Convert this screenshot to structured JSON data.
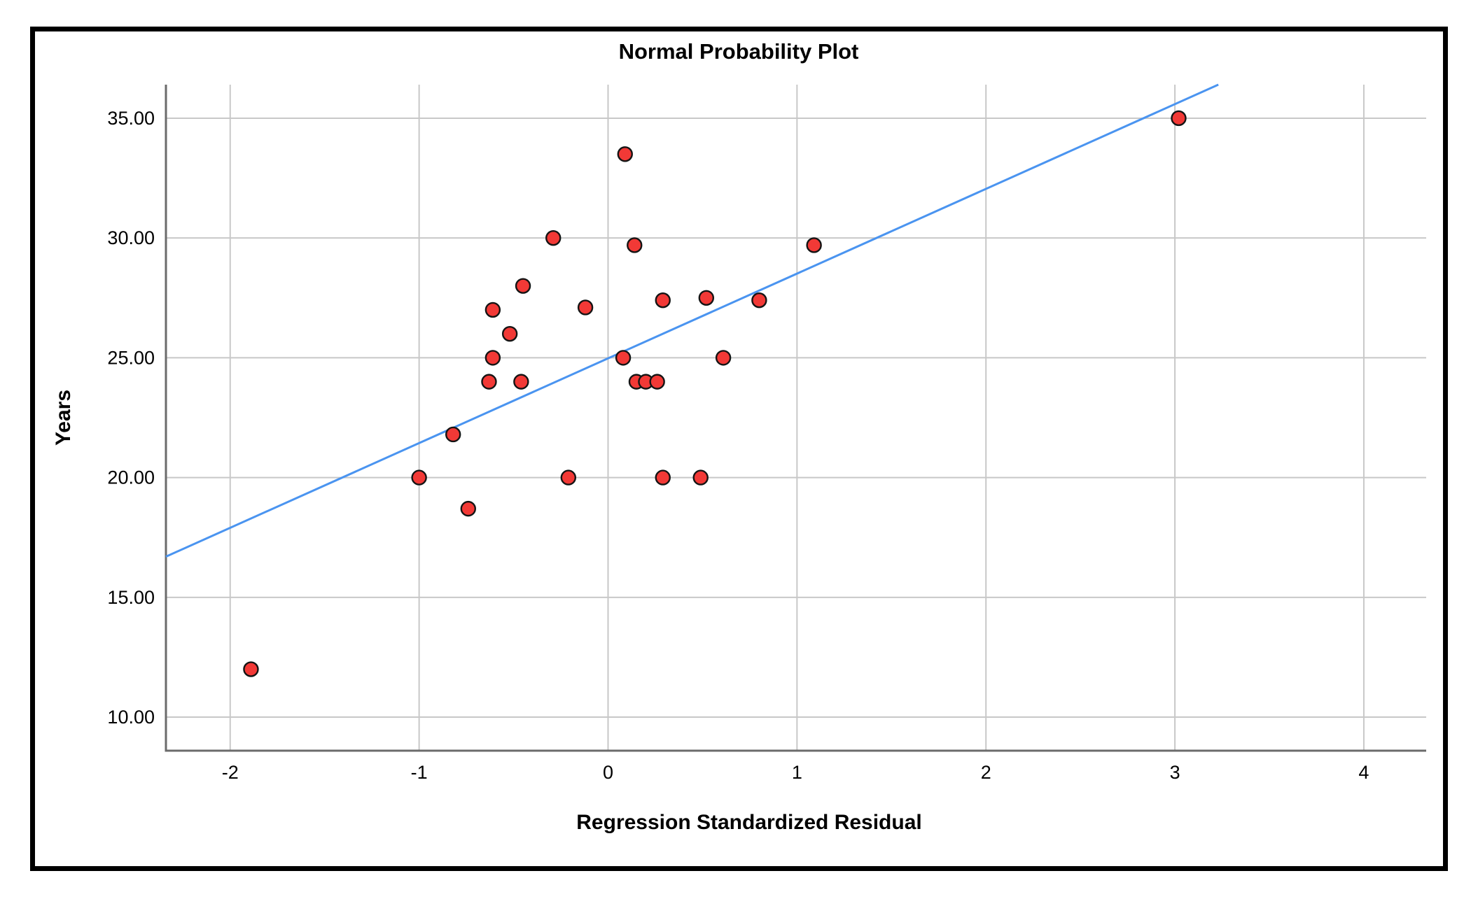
{
  "chart": {
    "title": "Normal Probability Plot",
    "x_axis_label": "Regression Standardized Residual",
    "y_axis_label": "Years"
  },
  "chart_data": {
    "type": "scatter",
    "title": "Normal Probability Plot",
    "xlabel": "Regression Standardized Residual",
    "ylabel": "Years",
    "xlim": [
      -2.34,
      4.33
    ],
    "ylim": [
      8.6,
      36.4
    ],
    "xticks": [
      -2,
      -1,
      0,
      1,
      2,
      3,
      4
    ],
    "xtick_labels": [
      "-2",
      "-1",
      "0",
      "1",
      "2",
      "3",
      "4"
    ],
    "yticks": [
      10,
      15,
      20,
      25,
      30,
      35
    ],
    "ytick_labels": [
      "10.00",
      "15.00",
      "20.00",
      "25.00",
      "30.00",
      "35.00"
    ],
    "grid": true,
    "legend": "none",
    "points": [
      [
        -1.89,
        12.0
      ],
      [
        -1.0,
        20.0
      ],
      [
        -0.82,
        21.8
      ],
      [
        -0.74,
        18.7
      ],
      [
        -0.63,
        24.0
      ],
      [
        -0.61,
        27.0
      ],
      [
        -0.61,
        25.0
      ],
      [
        -0.52,
        26.0
      ],
      [
        -0.46,
        24.0
      ],
      [
        -0.45,
        28.0
      ],
      [
        -0.29,
        30.0
      ],
      [
        -0.21,
        20.0
      ],
      [
        -0.12,
        27.1
      ],
      [
        0.08,
        25.0
      ],
      [
        0.09,
        33.5
      ],
      [
        0.14,
        29.7
      ],
      [
        0.15,
        24.0
      ],
      [
        0.2,
        24.0
      ],
      [
        0.26,
        24.0
      ],
      [
        0.29,
        20.0
      ],
      [
        0.29,
        27.4
      ],
      [
        0.49,
        20.0
      ],
      [
        0.52,
        27.5
      ],
      [
        0.61,
        25.0
      ],
      [
        0.8,
        27.4
      ],
      [
        1.09,
        29.7
      ],
      [
        3.02,
        35.0
      ]
    ],
    "trendline_points": [
      [
        -2.34,
        16.7
      ],
      [
        3.23,
        36.4
      ]
    ],
    "colors": {
      "point_fill": "#f23936",
      "point_stroke": "#141414",
      "trendline": "#4a94f0",
      "grid": "#c8c8c8",
      "axis": "#6b6b6b",
      "text": "#000000",
      "frame": "#000000",
      "background": "#ffffff"
    }
  }
}
